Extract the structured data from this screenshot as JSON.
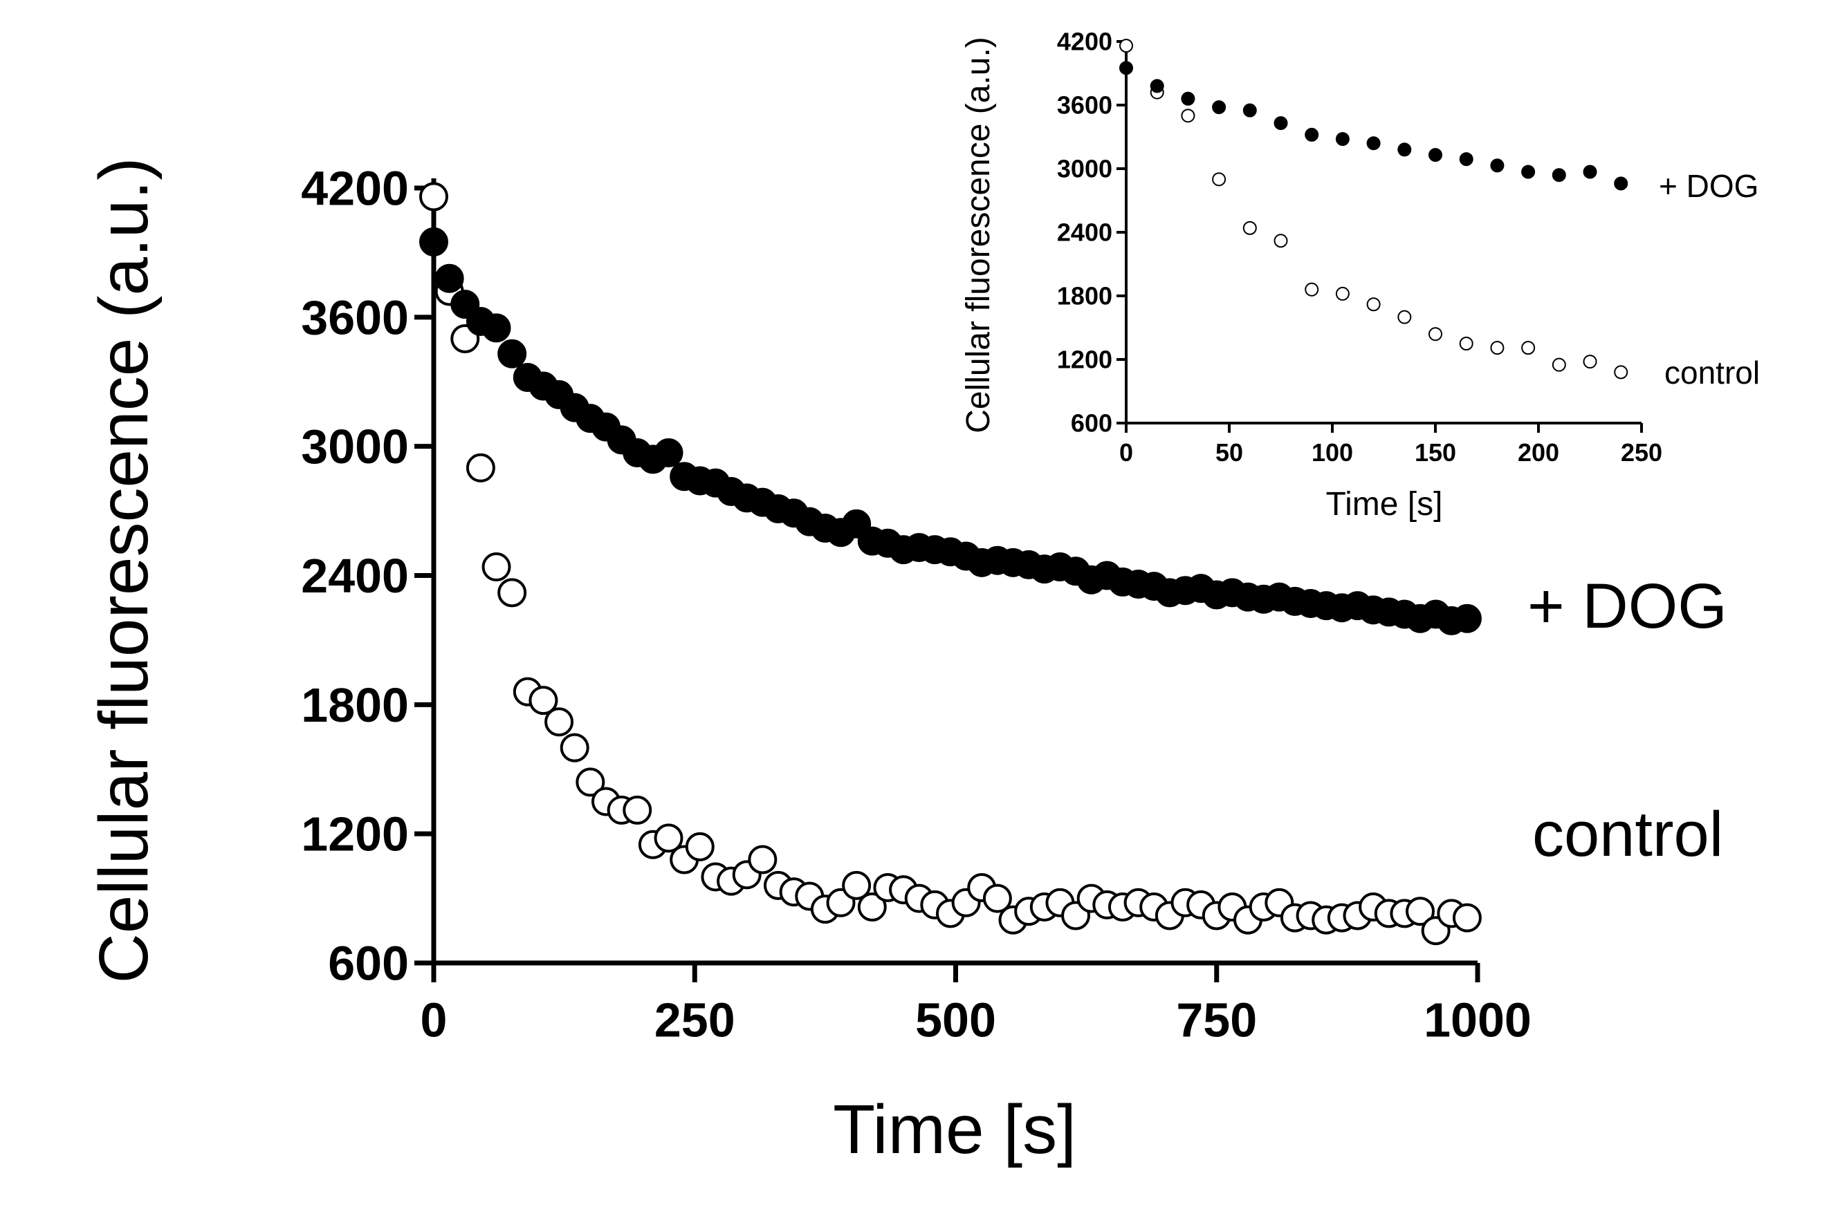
{
  "chart_data": [
    {
      "type": "scatter",
      "xlabel": "Time [s]",
      "ylabel": "Cellular fluorescence (a.u.)",
      "xlim": [
        0,
        1000
      ],
      "ylim": [
        600,
        4200
      ],
      "xticks": [
        0,
        250,
        500,
        750,
        1000
      ],
      "yticks": [
        600,
        1200,
        1800,
        2400,
        3000,
        3600,
        4200
      ],
      "xtick_labels": [
        "0",
        "250",
        "500",
        "750",
        "1000"
      ],
      "ytick_labels": [
        "600",
        "1200",
        "1800",
        "2400",
        "3000",
        "3600",
        "4200"
      ],
      "grid": false,
      "series": [
        {
          "name": "+ DOG",
          "marker": "filled-circle",
          "color": "#000000",
          "x": [
            0,
            15,
            30,
            45,
            60,
            75,
            90,
            105,
            120,
            135,
            150,
            165,
            180,
            195,
            210,
            225,
            240,
            255,
            270,
            285,
            300,
            315,
            330,
            345,
            360,
            375,
            390,
            405,
            420,
            435,
            450,
            465,
            480,
            495,
            510,
            525,
            540,
            555,
            570,
            585,
            600,
            615,
            630,
            645,
            660,
            675,
            690,
            705,
            720,
            735,
            750,
            765,
            780,
            795,
            810,
            825,
            840,
            855,
            870,
            885,
            900,
            915,
            930,
            945,
            960,
            975,
            990
          ],
          "y": [
            3950,
            3780,
            3660,
            3580,
            3550,
            3430,
            3320,
            3280,
            3240,
            3180,
            3130,
            3090,
            3030,
            2970,
            2940,
            2970,
            2860,
            2840,
            2830,
            2790,
            2760,
            2740,
            2710,
            2690,
            2650,
            2620,
            2600,
            2640,
            2560,
            2550,
            2520,
            2530,
            2520,
            2510,
            2490,
            2460,
            2470,
            2460,
            2450,
            2430,
            2440,
            2420,
            2380,
            2400,
            2370,
            2360,
            2350,
            2320,
            2330,
            2340,
            2310,
            2320,
            2300,
            2290,
            2300,
            2280,
            2270,
            2260,
            2250,
            2260,
            2240,
            2230,
            2220,
            2200,
            2220,
            2190,
            2200
          ]
        },
        {
          "name": "control",
          "marker": "open-circle",
          "color": "#000000",
          "x": [
            0,
            15,
            30,
            45,
            60,
            75,
            90,
            105,
            120,
            135,
            150,
            165,
            180,
            195,
            210,
            225,
            240,
            255,
            270,
            285,
            300,
            315,
            330,
            345,
            360,
            375,
            390,
            405,
            420,
            435,
            450,
            465,
            480,
            495,
            510,
            525,
            540,
            555,
            570,
            585,
            600,
            615,
            630,
            645,
            660,
            675,
            690,
            705,
            720,
            735,
            750,
            765,
            780,
            795,
            810,
            825,
            840,
            855,
            870,
            885,
            900,
            915,
            930,
            945,
            960,
            975,
            990
          ],
          "y": [
            4160,
            3720,
            3500,
            2900,
            2440,
            2320,
            1860,
            1820,
            1720,
            1600,
            1440,
            1350,
            1310,
            1310,
            1150,
            1180,
            1080,
            1140,
            1000,
            980,
            1010,
            1080,
            960,
            930,
            910,
            850,
            880,
            960,
            860,
            950,
            940,
            900,
            870,
            830,
            880,
            950,
            900,
            800,
            840,
            860,
            880,
            820,
            900,
            870,
            860,
            880,
            860,
            820,
            880,
            870,
            820,
            860,
            800,
            860,
            880,
            810,
            820,
            800,
            810,
            820,
            860,
            830,
            830,
            840,
            750,
            830,
            810
          ]
        }
      ],
      "annotations": [
        "+ DOG",
        "control"
      ]
    },
    {
      "type": "scatter",
      "xlabel": "Time [s]",
      "ylabel": "Cellular fluorescence (a.u.)",
      "xlim": [
        0,
        250
      ],
      "ylim": [
        600,
        4200
      ],
      "xticks": [
        0,
        50,
        100,
        150,
        200,
        250
      ],
      "yticks": [
        600,
        1200,
        1800,
        2400,
        3000,
        3600,
        4200
      ],
      "xtick_labels": [
        "0",
        "50",
        "100",
        "150",
        "200",
        "250"
      ],
      "ytick_labels": [
        "600",
        "1200",
        "1800",
        "2400",
        "3000",
        "3600",
        "4200"
      ],
      "grid": false,
      "series": [
        {
          "name": "+ DOG",
          "marker": "filled-circle",
          "color": "#000000",
          "x": [
            0,
            15,
            30,
            45,
            60,
            75,
            90,
            105,
            120,
            135,
            150,
            165,
            180,
            195,
            210,
            225,
            240
          ],
          "y": [
            3950,
            3780,
            3660,
            3580,
            3550,
            3430,
            3320,
            3280,
            3240,
            3180,
            3130,
            3090,
            3030,
            2970,
            2940,
            2970,
            2860
          ]
        },
        {
          "name": "control",
          "marker": "open-circle",
          "color": "#000000",
          "x": [
            0,
            15,
            30,
            45,
            60,
            75,
            90,
            105,
            120,
            135,
            150,
            165,
            180,
            195,
            210,
            225,
            240
          ],
          "y": [
            4160,
            3720,
            3500,
            2900,
            2440,
            2320,
            1860,
            1820,
            1720,
            1600,
            1440,
            1350,
            1310,
            1310,
            1150,
            1180,
            1080
          ]
        }
      ],
      "annotations": [
        "+ DOG",
        "control"
      ]
    }
  ]
}
